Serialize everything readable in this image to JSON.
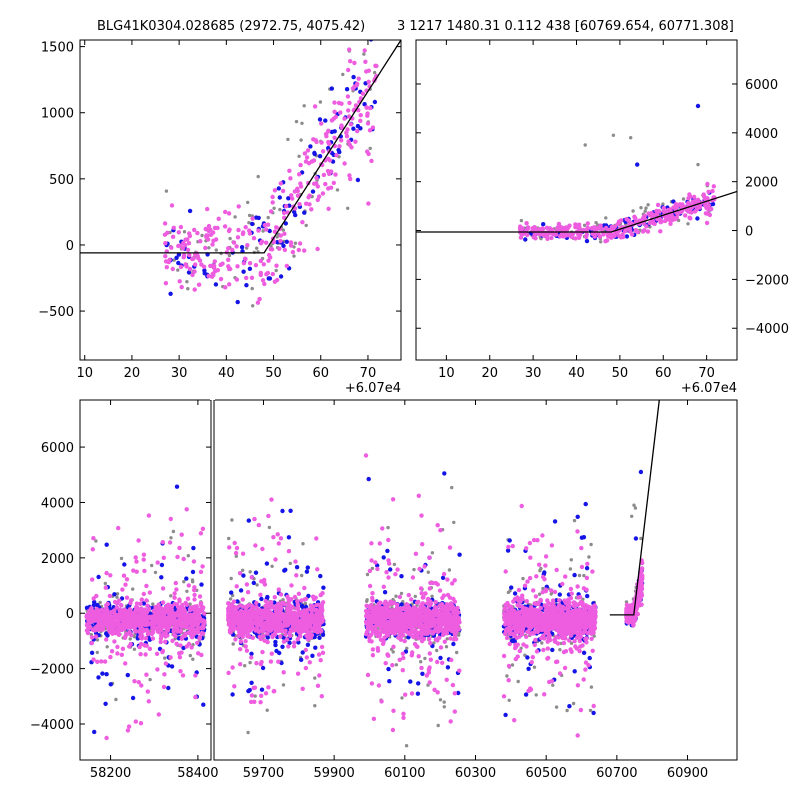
{
  "title": {
    "left": "BLG41K0304.028685 (2972.75, 4075.42)",
    "right": "3 1217 1480.31 0.112 438 [60769.654, 60771.308]"
  },
  "colors": {
    "grey": "#8c8c8c",
    "blue": "#1414e6",
    "magenta": "#ee5ce0",
    "line": "#000000"
  },
  "chart_data": [
    {
      "name": "zoom-left",
      "type": "scatter",
      "offset_label": "+6.07e4",
      "xlim": [
        9,
        77
      ],
      "ylim": [
        -870,
        1550
      ],
      "xticks": [
        10,
        20,
        30,
        40,
        50,
        60,
        70
      ],
      "xticklabels": [
        "10",
        "20",
        "30",
        "40",
        "50",
        "60",
        "70"
      ],
      "yticks": [
        -500,
        0,
        500,
        1000,
        1500
      ],
      "yticklabels": [
        "−500",
        "0",
        "500",
        "1000",
        "1500"
      ],
      "tick_side": "left",
      "model_line": [
        [
          9,
          -60
        ],
        [
          48,
          -60
        ],
        [
          77,
          1550
        ]
      ]
    },
    {
      "name": "zoom-right",
      "type": "scatter",
      "offset_label": "+6.07e4",
      "xlim": [
        3,
        77
      ],
      "ylim": [
        -5300,
        7800
      ],
      "xticks": [
        10,
        20,
        30,
        40,
        50,
        60,
        70
      ],
      "xticklabels": [
        "10",
        "20",
        "30",
        "40",
        "50",
        "60",
        "70"
      ],
      "yticks": [
        -4000,
        -2000,
        0,
        2000,
        4000,
        6000
      ],
      "yticklabels": [
        "−4000",
        "−2000",
        "0",
        "2000",
        "4000",
        "6000"
      ],
      "tick_side": "right",
      "model_line": [
        [
          3,
          -60
        ],
        [
          48,
          -60
        ],
        [
          77,
          1600
        ]
      ]
    },
    {
      "name": "full-left",
      "type": "scatter",
      "xlim": [
        58130,
        58430
      ],
      "ylim": [
        -5300,
        7700
      ],
      "xticks": [
        58200,
        58400
      ],
      "xticklabels": [
        "58200",
        "58400"
      ],
      "yticks": [
        -4000,
        -2000,
        0,
        2000,
        4000,
        6000
      ],
      "yticklabels": [
        "−4000",
        "−2000",
        "0",
        "2000",
        "4000",
        "6000"
      ],
      "tick_side": "left",
      "seasons": [
        [
          58145,
          58415
        ]
      ]
    },
    {
      "name": "full-right",
      "type": "scatter",
      "xlim": [
        59560,
        61040
      ],
      "ylim": [
        -5300,
        7700
      ],
      "xticks": [
        59700,
        59900,
        60100,
        60300,
        60500,
        60700,
        60900
      ],
      "xticklabels": [
        "59700",
        "59900",
        "60100",
        "60300",
        "60500",
        "60700",
        "60900"
      ],
      "yticks": [],
      "yticklabels": [],
      "tick_side": "left",
      "seasons": [
        [
          59600,
          59870
        ],
        [
          59990,
          60255
        ],
        [
          60380,
          60640
        ],
        [
          60725,
          60775
        ]
      ],
      "model_line": [
        [
          60680,
          -60
        ],
        [
          60748,
          -60
        ],
        [
          60820,
          7700
        ]
      ]
    }
  ]
}
